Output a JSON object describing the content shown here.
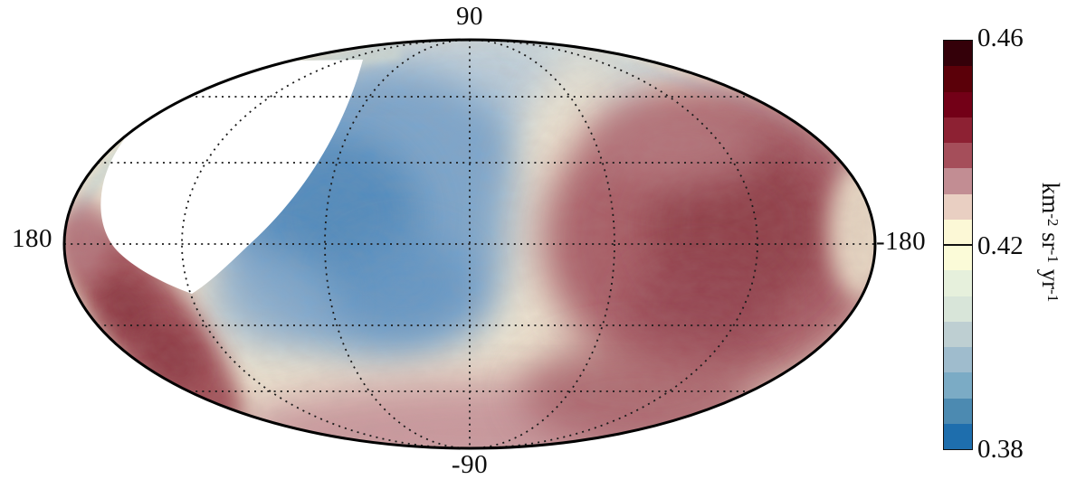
{
  "figure": {
    "axis_labels": {
      "top": "90",
      "bottom": "-90",
      "left": "180",
      "right": "-180"
    }
  },
  "colorbar": {
    "tick_labels": {
      "max": "0.46",
      "mid": "0.42",
      "min": "0.38"
    },
    "unit_parts": {
      "b1": "km",
      "s1": "-2",
      "b2": " sr",
      "s2": "-1",
      "b3": " yr",
      "s3": "-1"
    },
    "segments": [
      "#340009",
      "#5b0009",
      "#730017",
      "#8d2133",
      "#a54e5a",
      "#c28d93",
      "#e9cfc2",
      "#fcf8d6",
      "#fbfbd8",
      "#e6f0dc",
      "#d8e5d9",
      "#becfd2",
      "#9fbccd",
      "#7babc5",
      "#4c8ab1",
      "#1e6ead"
    ]
  },
  "chart_data": {
    "type": "heatmap",
    "projection": "mollweide-sky-map",
    "title": "",
    "coordinate_labels": {
      "top_pole": "90",
      "bottom_pole": "-90",
      "left_edge": "180",
      "right_edge": "-180"
    },
    "graticule": {
      "style": "dotted",
      "meridians_deg": [
        -120,
        -60,
        0,
        60,
        120
      ],
      "parallels_deg": [
        -60,
        -30,
        0,
        30,
        60
      ]
    },
    "colorbar": {
      "unit": "km^-2 sr^-1 yr^-1",
      "value_min": 0.38,
      "value_mid_marker": 0.42,
      "value_max": 0.46,
      "tick_labels": [
        "0.46",
        "0.42",
        "0.38"
      ],
      "n_discrete_segments": 16,
      "segment_step": 0.005,
      "segment_colors_top_to_bottom": [
        "#340009",
        "#5b0009",
        "#730017",
        "#8d2133",
        "#a54e5a",
        "#c28d93",
        "#e9cfc2",
        "#fcf8d6",
        "#fbfbd8",
        "#e6f0dc",
        "#d8e5d9",
        "#becfd2",
        "#9fbccd",
        "#7babc5",
        "#4c8ab1",
        "#1e6ead"
      ],
      "orientation": "vertical",
      "position": "right"
    },
    "regions": [
      {
        "name": "masked-unobserved-sky",
        "location": "upper-left crescent",
        "appearance": "white, no data"
      },
      {
        "name": "flux-deficit",
        "location": "center-left of map",
        "color_family": "blue",
        "approx_value_range": [
          0.38,
          0.41
        ]
      },
      {
        "name": "flux-excess",
        "location": "right third of map",
        "color_family": "dark red",
        "approx_value_range": [
          0.43,
          0.46
        ]
      },
      {
        "name": "flux-excess-rim",
        "location": "lower-left rim band and bottom edge",
        "color_family": "dusty red",
        "approx_value_range": [
          0.43,
          0.45
        ]
      },
      {
        "name": "mean-flux-background",
        "location": "transition zones",
        "color_family": "cream",
        "approx_value": 0.42
      }
    ],
    "palette_key_colors": {
      "deep_red": "#340009",
      "mid_red": "#a54e5a",
      "neutral_cream": "#fbfbd8",
      "mid_blue": "#7babc5",
      "deep_blue": "#1e6ead"
    }
  }
}
